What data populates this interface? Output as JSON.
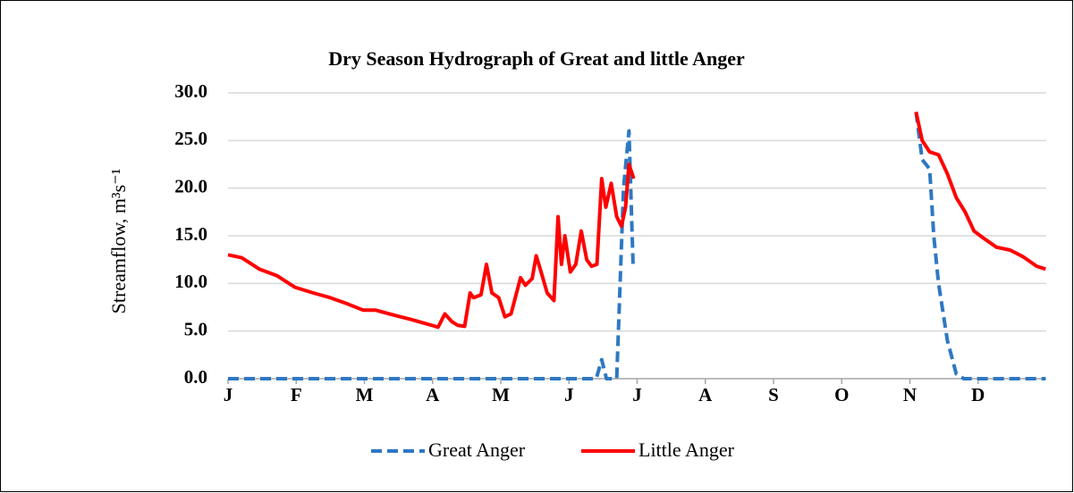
{
  "chart_data": {
    "type": "line",
    "title": "Dry Season Hydrograph of Great and little Anger",
    "y_label": "Streamflow,  m³s⁻¹",
    "xlim": [
      0,
      12
    ],
    "xticks": [
      {
        "value": 0,
        "label": "J"
      },
      {
        "value": 1,
        "label": "F"
      },
      {
        "value": 2,
        "label": "M"
      },
      {
        "value": 3,
        "label": "A"
      },
      {
        "value": 4,
        "label": "M"
      },
      {
        "value": 5,
        "label": "J"
      },
      {
        "value": 6,
        "label": "J"
      },
      {
        "value": 7,
        "label": "A"
      },
      {
        "value": 8,
        "label": "S"
      },
      {
        "value": 9,
        "label": "O"
      },
      {
        "value": 10,
        "label": "N"
      },
      {
        "value": 11,
        "label": "D"
      }
    ],
    "ylim": [
      0,
      30
    ],
    "yticks": [
      {
        "value": 0,
        "label": "0.0"
      },
      {
        "value": 5,
        "label": "5.0"
      },
      {
        "value": 10,
        "label": "10.0"
      },
      {
        "value": 15,
        "label": "15.0"
      },
      {
        "value": 20,
        "label": "20.0"
      },
      {
        "value": 25,
        "label": "25.0"
      },
      {
        "value": 30,
        "label": "30.0"
      }
    ],
    "grid": true,
    "legend": "bottom",
    "series": [
      {
        "name": "Great Anger",
        "color": "#2e78c2",
        "dash": true,
        "x": [
          0,
          5.4,
          5.48,
          5.55,
          5.7,
          5.8,
          5.88,
          5.94,
          null,
          10.09,
          10.18,
          10.29,
          10.35,
          10.42,
          10.55,
          10.68,
          10.79,
          11.99
        ],
        "values": [
          0,
          0,
          2,
          0,
          0,
          20,
          26,
          12,
          null,
          28,
          23,
          22,
          15,
          10,
          4,
          0.5,
          0,
          0
        ]
      },
      {
        "name": "Little Anger",
        "color": "#ff0000",
        "dash": false,
        "x": [
          0,
          0.2,
          0.46,
          0.72,
          0.98,
          1.25,
          1.5,
          1.77,
          1.98,
          2.16,
          2.42,
          2.69,
          2.99,
          3.08,
          3.18,
          3.28,
          3.37,
          3.47,
          3.55,
          3.6,
          3.71,
          3.79,
          3.87,
          3.97,
          4.06,
          4.15,
          4.29,
          4.36,
          4.46,
          4.52,
          4.6,
          4.68,
          4.78,
          4.84,
          4.89,
          4.94,
          5.02,
          5.1,
          5.18,
          5.26,
          5.33,
          5.41,
          5.48,
          5.54,
          5.62,
          5.7,
          5.77,
          5.83,
          5.88,
          5.95,
          null,
          10.09,
          10.18,
          10.29,
          10.42,
          10.55,
          10.68,
          10.81,
          10.94,
          11.07,
          11.27,
          11.47,
          11.66,
          11.86,
          11.99
        ],
        "values": [
          13,
          12.7,
          11.5,
          10.8,
          9.6,
          9,
          8.5,
          7.8,
          7.2,
          7.2,
          6.7,
          6.2,
          5.6,
          5.4,
          6.8,
          6,
          5.6,
          5.5,
          9,
          8.5,
          8.8,
          12,
          9,
          8.5,
          6.5,
          6.8,
          10.6,
          9.8,
          10.5,
          12.9,
          11,
          9,
          8.2,
          17,
          12,
          15,
          11.2,
          12,
          15.5,
          12.5,
          11.8,
          12,
          21,
          18,
          20.5,
          17,
          16,
          18,
          22.5,
          21,
          null,
          28,
          25,
          23.8,
          23.5,
          21.5,
          19,
          17.5,
          15.5,
          14.8,
          13.8,
          13.5,
          12.8,
          11.8,
          11.5
        ]
      }
    ]
  }
}
